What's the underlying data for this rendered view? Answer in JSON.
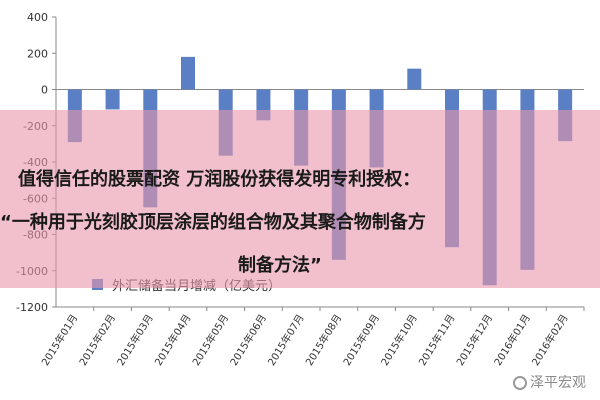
{
  "chart_data": {
    "type": "bar",
    "categories": [
      "2015年01月",
      "2015年02月",
      "2015年03月",
      "2015年04月",
      "2015年05月",
      "2015年06月",
      "2015年07月",
      "2015年08月",
      "2015年09月",
      "2015年10月",
      "2015年11月",
      "2015年12月",
      "2016年01月",
      "2016年02月"
    ],
    "series": [
      {
        "name": "外汇储备当月增减（亿美元）",
        "values": [
          -290,
          -110,
          -650,
          180,
          -365,
          -170,
          -420,
          -940,
          -430,
          115,
          -870,
          -1080,
          -995,
          -285
        ]
      }
    ],
    "ylim": [
      -1200,
      400
    ],
    "yticks": [
      -1200,
      -1000,
      -800,
      -600,
      -400,
      -200,
      0,
      200,
      400
    ],
    "ytick_labels": [
      "-1200",
      "-1000",
      "-800",
      "-600",
      "-400",
      "-200",
      "0",
      "200",
      "400"
    ],
    "grid": false,
    "legend": "bottom-left",
    "colors": {
      "bar": "#5b7fc4",
      "axis": "#888888"
    }
  },
  "overlay": {
    "line1": "值得信任的股票配资 万润股份获得发明专利授权：",
    "line2": "“一种用于光刻胶顶层涂层的组合物及其聚合物制备方",
    "line3": "制备方法”",
    "color": "#e896aa"
  },
  "watermark": {
    "text": "泽平宏观",
    "icon": "circle-logo-icon"
  }
}
